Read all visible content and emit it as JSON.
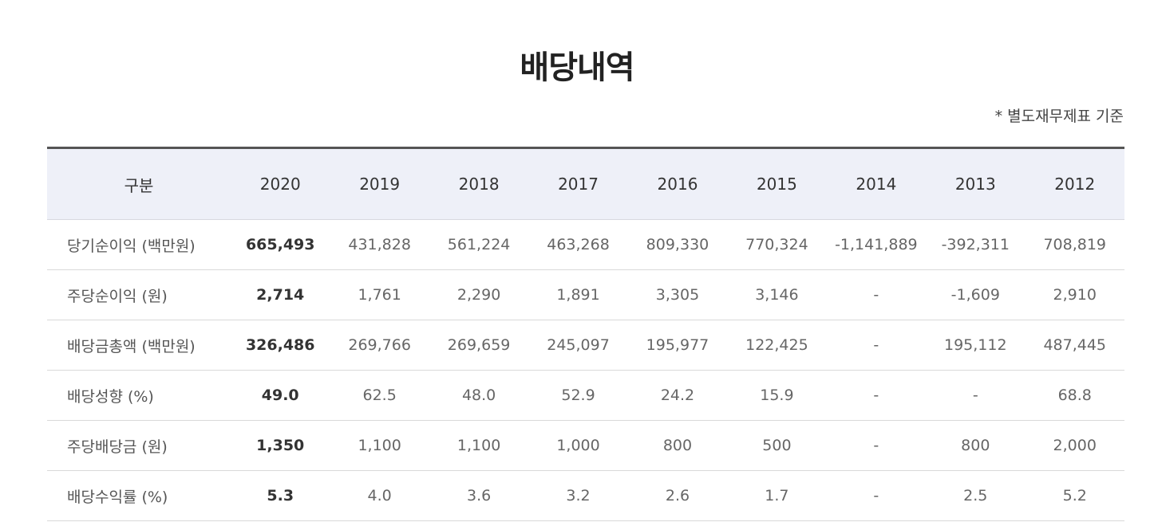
{
  "page": {
    "title": "배당내역",
    "note": "* 별도재무제표 기준"
  },
  "table": {
    "header": {
      "label": "구분",
      "years": [
        "2020",
        "2019",
        "2018",
        "2017",
        "2016",
        "2015",
        "2014",
        "2013",
        "2012"
      ]
    },
    "rows": [
      {
        "label": "당기순이익 (백만원)",
        "values": [
          "665,493",
          "431,828",
          "561,224",
          "463,268",
          "809,330",
          "770,324",
          "-1,141,889",
          "-392,311",
          "708,819"
        ]
      },
      {
        "label": "주당순이익 (원)",
        "values": [
          "2,714",
          "1,761",
          "2,290",
          "1,891",
          "3,305",
          "3,146",
          "-",
          "-1,609",
          "2,910"
        ]
      },
      {
        "label": "배당금총액 (백만원)",
        "values": [
          "326,486",
          "269,766",
          "269,659",
          "245,097",
          "195,977",
          "122,425",
          "-",
          "195,112",
          "487,445"
        ]
      },
      {
        "label": "배당성향 (%)",
        "values": [
          "49.0",
          "62.5",
          "48.0",
          "52.9",
          "24.2",
          "15.9",
          "-",
          "-",
          "68.8"
        ]
      },
      {
        "label": "주당배당금 (원)",
        "values": [
          "1,350",
          "1,100",
          "1,100",
          "1,000",
          "800",
          "500",
          "-",
          "800",
          "2,000"
        ]
      },
      {
        "label": "배당수익률 (%)",
        "values": [
          "5.3",
          "4.0",
          "3.6",
          "3.2",
          "2.6",
          "1.7",
          "-",
          "2.5",
          "5.2"
        ]
      }
    ]
  }
}
